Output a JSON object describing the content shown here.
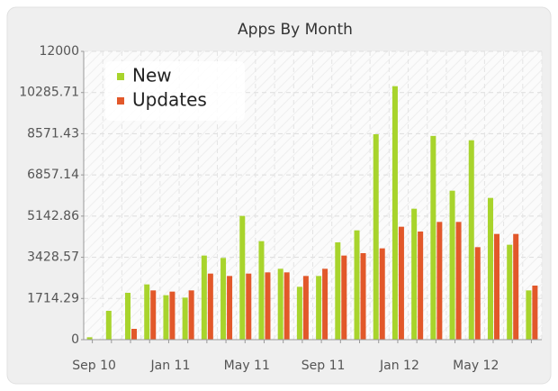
{
  "chart_data": {
    "type": "bar",
    "title": "Apps By Month",
    "categories": [
      "Sep 10",
      null,
      null,
      null,
      "Jan 11",
      null,
      null,
      null,
      "May 11",
      null,
      null,
      null,
      "Sep 11",
      null,
      null,
      null,
      "Jan 12",
      null,
      null,
      null,
      "May 12",
      null,
      null,
      null
    ],
    "series": [
      {
        "name": "New",
        "color": "#a8d42c",
        "values": [
          100,
          1200,
          1950,
          2300,
          1850,
          1750,
          3500,
          3400,
          5150,
          4100,
          2950,
          2200,
          2650,
          4050,
          4550,
          8550,
          10550,
          5450,
          8480,
          6200,
          8300,
          5900,
          3950,
          2050
        ]
      },
      {
        "name": "Updates",
        "color": "#e2582a",
        "values": [
          0,
          0,
          450,
          2050,
          2000,
          2050,
          2750,
          2650,
          2750,
          2800,
          2800,
          2650,
          2950,
          3500,
          3600,
          3800,
          4700,
          4500,
          4900,
          4900,
          3850,
          4400,
          4400,
          2250
        ]
      }
    ],
    "ylim": [
      0,
      12000
    ],
    "yticks": [
      0,
      1714.29,
      3428.57,
      5142.86,
      6857.14,
      8571.43,
      10285.71,
      12000
    ],
    "grid": true,
    "legend": "top-left"
  }
}
